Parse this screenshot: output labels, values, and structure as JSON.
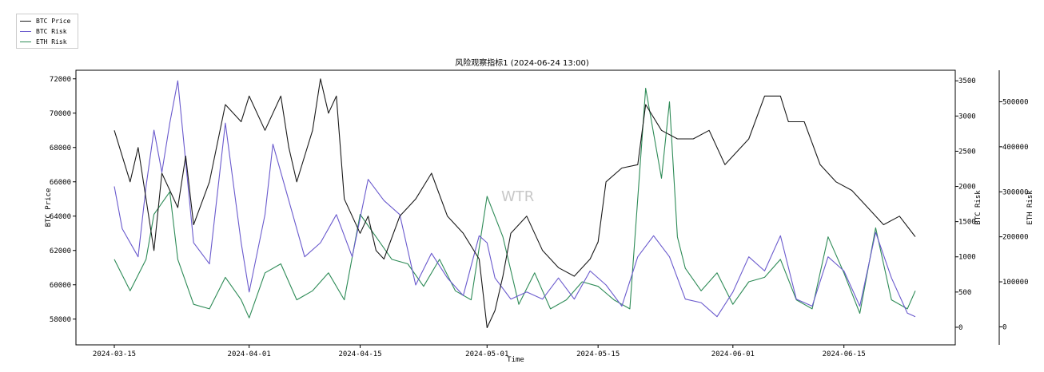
{
  "chart_data": {
    "type": "line",
    "title": "风险观察指标1 (2024-06-24 13:00)",
    "watermark": "WTR",
    "xlabel": "Time",
    "x_ticks": [
      "2024-03-15",
      "2024-04-01",
      "2024-04-15",
      "2024-05-01",
      "2024-05-15",
      "2024-06-01",
      "2024-06-15"
    ],
    "x_range": [
      "2024-03-15",
      "2024-06-24"
    ],
    "grid": false,
    "legend_placement": "top-left",
    "axes": {
      "btc_price": {
        "label": "BTC Price",
        "ylim": [
          56500,
          72500
        ],
        "ticks": [
          58000,
          60000,
          62000,
          64000,
          66000,
          68000,
          70000,
          72000
        ]
      },
      "btc_risk": {
        "label": "BTC Risk",
        "ylim": [
          -250,
          3650
        ],
        "ticks": [
          0,
          500,
          1000,
          1500,
          2000,
          2500,
          3000,
          3500
        ]
      },
      "eth_risk": {
        "label": "ETH Risk",
        "ylim": [
          -40000,
          570000
        ],
        "ticks": [
          0,
          100000,
          200000,
          300000,
          400000,
          500000
        ]
      }
    },
    "series": [
      {
        "name": "BTC Price",
        "axis": "btc_price",
        "color": "#1a1a1a",
        "points": [
          [
            "2024-03-15",
            69000
          ],
          [
            "2024-03-17",
            66000
          ],
          [
            "2024-03-18",
            68000
          ],
          [
            "2024-03-20",
            62000
          ],
          [
            "2024-03-21",
            66500
          ],
          [
            "2024-03-23",
            64500
          ],
          [
            "2024-03-24",
            67500
          ],
          [
            "2024-03-25",
            63500
          ],
          [
            "2024-03-27",
            66000
          ],
          [
            "2024-03-29",
            70500
          ],
          [
            "2024-03-31",
            69500
          ],
          [
            "2024-04-01",
            71000
          ],
          [
            "2024-04-03",
            69000
          ],
          [
            "2024-04-05",
            71000
          ],
          [
            "2024-04-06",
            68000
          ],
          [
            "2024-04-07",
            66000
          ],
          [
            "2024-04-08",
            67500
          ],
          [
            "2024-04-09",
            69000
          ],
          [
            "2024-04-10",
            72000
          ],
          [
            "2024-04-11",
            70000
          ],
          [
            "2024-04-12",
            71000
          ],
          [
            "2024-04-13",
            65000
          ],
          [
            "2024-04-15",
            63000
          ],
          [
            "2024-04-16",
            64000
          ],
          [
            "2024-04-17",
            62000
          ],
          [
            "2024-04-18",
            61500
          ],
          [
            "2024-04-20",
            64000
          ],
          [
            "2024-04-22",
            65000
          ],
          [
            "2024-04-24",
            66500
          ],
          [
            "2024-04-26",
            64000
          ],
          [
            "2024-04-28",
            63000
          ],
          [
            "2024-04-30",
            61500
          ],
          [
            "2024-05-01",
            57500
          ],
          [
            "2024-05-02",
            58500
          ],
          [
            "2024-05-03",
            60500
          ],
          [
            "2024-05-04",
            63000
          ],
          [
            "2024-05-06",
            64000
          ],
          [
            "2024-05-08",
            62000
          ],
          [
            "2024-05-10",
            61000
          ],
          [
            "2024-05-12",
            60500
          ],
          [
            "2024-05-14",
            61500
          ],
          [
            "2024-05-15",
            62500
          ],
          [
            "2024-05-16",
            66000
          ],
          [
            "2024-05-18",
            66800
          ],
          [
            "2024-05-20",
            67000
          ],
          [
            "2024-05-21",
            70500
          ],
          [
            "2024-05-23",
            69000
          ],
          [
            "2024-05-25",
            68500
          ],
          [
            "2024-05-27",
            68500
          ],
          [
            "2024-05-29",
            69000
          ],
          [
            "2024-05-31",
            67000
          ],
          [
            "2024-06-01",
            67500
          ],
          [
            "2024-06-03",
            68500
          ],
          [
            "2024-06-05",
            71000
          ],
          [
            "2024-06-07",
            71000
          ],
          [
            "2024-06-08",
            69500
          ],
          [
            "2024-06-10",
            69500
          ],
          [
            "2024-06-12",
            67000
          ],
          [
            "2024-06-14",
            66000
          ],
          [
            "2024-06-16",
            65500
          ],
          [
            "2024-06-18",
            64500
          ],
          [
            "2024-06-20",
            63500
          ],
          [
            "2024-06-22",
            64000
          ],
          [
            "2024-06-24",
            62800
          ]
        ]
      },
      {
        "name": "BTC Risk",
        "axis": "btc_risk",
        "color": "#6a5acd",
        "points": [
          [
            "2024-03-15",
            2000
          ],
          [
            "2024-03-16",
            1400
          ],
          [
            "2024-03-18",
            1000
          ],
          [
            "2024-03-19",
            2000
          ],
          [
            "2024-03-20",
            2800
          ],
          [
            "2024-03-21",
            2200
          ],
          [
            "2024-03-22",
            2900
          ],
          [
            "2024-03-23",
            3500
          ],
          [
            "2024-03-25",
            1200
          ],
          [
            "2024-03-27",
            900
          ],
          [
            "2024-03-29",
            2900
          ],
          [
            "2024-03-31",
            1200
          ],
          [
            "2024-04-01",
            500
          ],
          [
            "2024-04-03",
            1600
          ],
          [
            "2024-04-04",
            2600
          ],
          [
            "2024-04-06",
            1800
          ],
          [
            "2024-04-08",
            1000
          ],
          [
            "2024-04-10",
            1200
          ],
          [
            "2024-04-12",
            1600
          ],
          [
            "2024-04-14",
            1000
          ],
          [
            "2024-04-16",
            2100
          ],
          [
            "2024-04-18",
            1800
          ],
          [
            "2024-04-20",
            1600
          ],
          [
            "2024-04-22",
            600
          ],
          [
            "2024-04-24",
            1050
          ],
          [
            "2024-04-26",
            700
          ],
          [
            "2024-04-28",
            450
          ],
          [
            "2024-04-30",
            1300
          ],
          [
            "2024-05-01",
            1200
          ],
          [
            "2024-05-02",
            700
          ],
          [
            "2024-05-04",
            400
          ],
          [
            "2024-05-06",
            500
          ],
          [
            "2024-05-08",
            400
          ],
          [
            "2024-05-10",
            700
          ],
          [
            "2024-05-12",
            400
          ],
          [
            "2024-05-14",
            800
          ],
          [
            "2024-05-16",
            600
          ],
          [
            "2024-05-18",
            300
          ],
          [
            "2024-05-20",
            1000
          ],
          [
            "2024-05-22",
            1300
          ],
          [
            "2024-05-24",
            1000
          ],
          [
            "2024-05-26",
            400
          ],
          [
            "2024-05-28",
            350
          ],
          [
            "2024-05-30",
            150
          ],
          [
            "2024-06-01",
            500
          ],
          [
            "2024-06-03",
            1000
          ],
          [
            "2024-06-05",
            800
          ],
          [
            "2024-06-07",
            1300
          ],
          [
            "2024-06-09",
            400
          ],
          [
            "2024-06-11",
            300
          ],
          [
            "2024-06-13",
            1000
          ],
          [
            "2024-06-15",
            800
          ],
          [
            "2024-06-17",
            300
          ],
          [
            "2024-06-19",
            1350
          ],
          [
            "2024-06-21",
            700
          ],
          [
            "2024-06-23",
            200
          ],
          [
            "2024-06-24",
            150
          ]
        ]
      },
      {
        "name": "ETH Risk",
        "axis": "eth_risk",
        "color": "#2e8b57",
        "points": [
          [
            "2024-03-15",
            150000
          ],
          [
            "2024-03-17",
            80000
          ],
          [
            "2024-03-19",
            150000
          ],
          [
            "2024-03-20",
            250000
          ],
          [
            "2024-03-22",
            300000
          ],
          [
            "2024-03-23",
            150000
          ],
          [
            "2024-03-25",
            50000
          ],
          [
            "2024-03-27",
            40000
          ],
          [
            "2024-03-29",
            110000
          ],
          [
            "2024-03-31",
            60000
          ],
          [
            "2024-04-01",
            20000
          ],
          [
            "2024-04-03",
            120000
          ],
          [
            "2024-04-05",
            140000
          ],
          [
            "2024-04-07",
            60000
          ],
          [
            "2024-04-09",
            80000
          ],
          [
            "2024-04-11",
            120000
          ],
          [
            "2024-04-13",
            60000
          ],
          [
            "2024-04-15",
            250000
          ],
          [
            "2024-04-17",
            200000
          ],
          [
            "2024-04-19",
            150000
          ],
          [
            "2024-04-21",
            140000
          ],
          [
            "2024-04-23",
            90000
          ],
          [
            "2024-04-25",
            150000
          ],
          [
            "2024-04-27",
            80000
          ],
          [
            "2024-04-29",
            60000
          ],
          [
            "2024-05-01",
            290000
          ],
          [
            "2024-05-03",
            200000
          ],
          [
            "2024-05-05",
            50000
          ],
          [
            "2024-05-07",
            120000
          ],
          [
            "2024-05-09",
            40000
          ],
          [
            "2024-05-11",
            60000
          ],
          [
            "2024-05-13",
            100000
          ],
          [
            "2024-05-15",
            90000
          ],
          [
            "2024-05-17",
            60000
          ],
          [
            "2024-05-19",
            40000
          ],
          [
            "2024-05-21",
            530000
          ],
          [
            "2024-05-23",
            330000
          ],
          [
            "2024-05-24",
            500000
          ],
          [
            "2024-05-25",
            200000
          ],
          [
            "2024-05-26",
            130000
          ],
          [
            "2024-05-28",
            80000
          ],
          [
            "2024-05-30",
            120000
          ],
          [
            "2024-06-01",
            50000
          ],
          [
            "2024-06-03",
            100000
          ],
          [
            "2024-06-05",
            110000
          ],
          [
            "2024-06-07",
            150000
          ],
          [
            "2024-06-09",
            60000
          ],
          [
            "2024-06-11",
            40000
          ],
          [
            "2024-06-13",
            200000
          ],
          [
            "2024-06-15",
            120000
          ],
          [
            "2024-06-17",
            30000
          ],
          [
            "2024-06-19",
            220000
          ],
          [
            "2024-06-21",
            60000
          ],
          [
            "2024-06-23",
            40000
          ],
          [
            "2024-06-24",
            80000
          ]
        ]
      }
    ]
  }
}
